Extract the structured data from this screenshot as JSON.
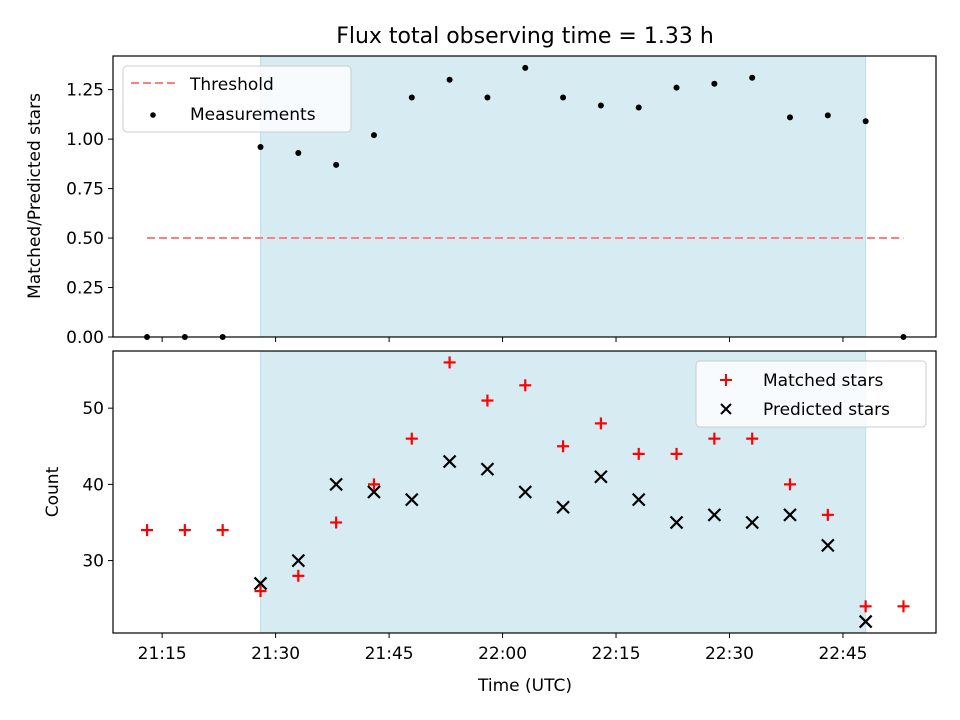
{
  "chart_data": {
    "title": "Flux total observing time = 1.33 h",
    "xlabel": "Time (UTC)",
    "x_ticks": [
      "21:15",
      "21:30",
      "21:45",
      "22:00",
      "22:15",
      "22:30",
      "22:45"
    ],
    "observing_window": {
      "start": "21:28",
      "end": "22:48",
      "color": "#add8e6"
    },
    "times": [
      "21:13",
      "21:18",
      "21:23",
      "21:28",
      "21:33",
      "21:38",
      "21:43",
      "21:48",
      "21:53",
      "21:58",
      "22:03",
      "22:08",
      "22:13",
      "22:18",
      "22:23",
      "22:28",
      "22:33",
      "22:38",
      "22:43",
      "22:48",
      "22:53"
    ],
    "top": {
      "type": "scatter",
      "ylabel": "Matched/Predicted stars",
      "ylim": [
        0,
        1.42
      ],
      "y_ticks": [
        "0.00",
        "0.25",
        "0.50",
        "0.75",
        "1.00",
        "1.25"
      ],
      "threshold": {
        "name": "Threshold",
        "value": 0.5,
        "color": "#ff7f7f",
        "x_start": "21:13",
        "x_end": "22:53"
      },
      "series": [
        {
          "name": "Measurements",
          "color": "#000000",
          "values": [
            0,
            0,
            0,
            0.96,
            0.93,
            0.87,
            1.02,
            1.21,
            1.3,
            1.21,
            1.36,
            1.21,
            1.17,
            1.16,
            1.26,
            1.28,
            1.31,
            1.11,
            1.12,
            1.09,
            0
          ]
        }
      ],
      "legend": "top-left"
    },
    "bottom": {
      "type": "scatter",
      "ylabel": "Count",
      "ylim": [
        20.5,
        57.5
      ],
      "y_ticks": [
        "30",
        "40",
        "50"
      ],
      "series": [
        {
          "name": "Matched stars",
          "marker": "+",
          "color": "#ff0000",
          "values": [
            34,
            34,
            34,
            26,
            28,
            35,
            40,
            46,
            56,
            51,
            53,
            45,
            48,
            44,
            44,
            46,
            46,
            40,
            36,
            24,
            24
          ]
        },
        {
          "name": "Predicted stars",
          "marker": "x",
          "color": "#000000",
          "values": [
            null,
            null,
            null,
            27,
            30,
            40,
            39,
            38,
            43,
            42,
            39,
            37,
            41,
            38,
            35,
            36,
            35,
            36,
            32,
            22,
            null
          ]
        }
      ],
      "legend": "top-right"
    }
  }
}
